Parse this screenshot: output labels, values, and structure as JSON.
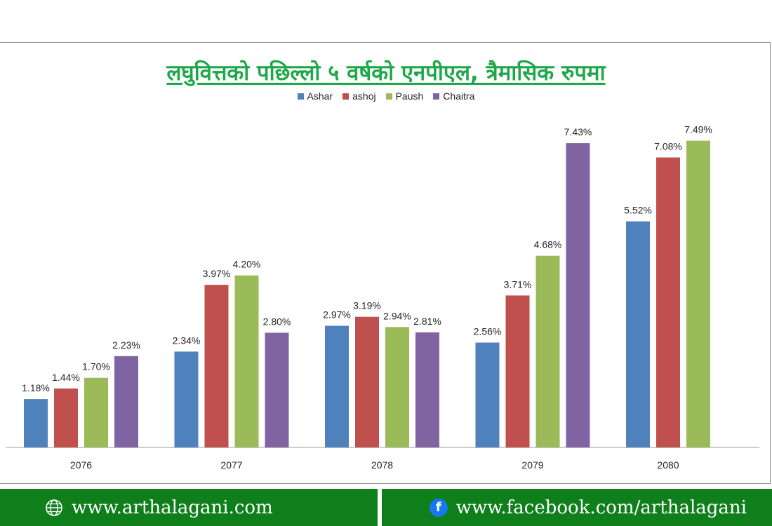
{
  "footer": {
    "website": "www.arthalagani.com",
    "website_icon": "globe-icon",
    "facebook": "www.facebook.com/arthalagani",
    "facebook_icon": "facebook-icon",
    "facebook_glyph": "f",
    "background_color": "#0f7f1b"
  },
  "chart_data": {
    "type": "bar",
    "title": "लघुवित्तको पछिल्लो ५ वर्षको एनपीएल, त्रैमासिक रुपमा",
    "xlabel": "",
    "ylabel": "",
    "categories": [
      "2076",
      "2077",
      "2078",
      "2079",
      "2080"
    ],
    "series": [
      {
        "name": "Ashar",
        "color": "#4f81bd",
        "values": [
          1.18,
          2.34,
          2.97,
          2.56,
          5.52
        ],
        "labels": [
          "1.18%",
          "2.34%",
          "2.97%",
          "2.56%",
          "5.52%"
        ]
      },
      {
        "name": "ashoj",
        "color": "#c0504d",
        "values": [
          1.44,
          3.97,
          3.19,
          3.71,
          7.08
        ],
        "labels": [
          "1.44%",
          "3.97%",
          "3.19%",
          "3.71%",
          "7.08%"
        ]
      },
      {
        "name": "Paush",
        "color": "#9bbb59",
        "values": [
          1.7,
          4.2,
          2.94,
          4.68,
          7.49
        ],
        "labels": [
          "1.70%",
          "4.20%",
          "2.94%",
          "4.68%",
          "7.49%"
        ]
      },
      {
        "name": "Chaitra",
        "color": "#8064a2",
        "values": [
          2.23,
          2.8,
          2.81,
          7.43,
          null
        ],
        "labels": [
          "2.23%",
          "2.80%",
          "2.81%",
          "7.43%",
          null
        ]
      }
    ],
    "ylim": [
      0,
      8
    ],
    "grid": false,
    "legend_position": "top"
  }
}
